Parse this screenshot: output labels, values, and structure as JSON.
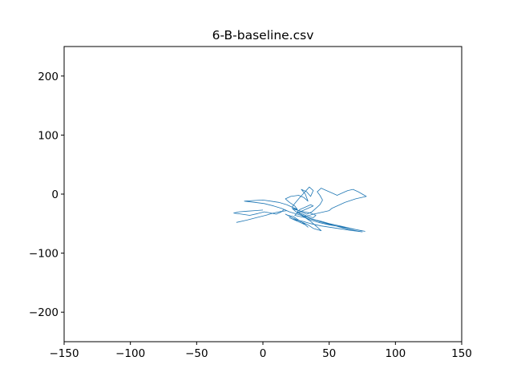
{
  "chart_data": {
    "type": "line",
    "title": "6-B-baseline.csv",
    "xlabel": "",
    "ylabel": "",
    "xlim": [
      -150,
      150
    ],
    "ylim": [
      -250,
      250
    ],
    "xticks": [
      -150,
      -100,
      -50,
      0,
      50,
      100,
      150
    ],
    "yticks": [
      -200,
      -100,
      0,
      100,
      200
    ],
    "xtick_labels": [
      "−150",
      "−100",
      "−50",
      "0",
      "50",
      "100",
      "150"
    ],
    "ytick_labels": [
      "−200",
      "−100",
      "0",
      "100",
      "200"
    ],
    "grid": false,
    "series": [
      {
        "color": "#1f77b4",
        "x": [
          -20,
          -12,
          -5,
          2,
          8,
          12,
          18,
          14,
          8,
          1,
          -6,
          -14,
          -8,
          0,
          6,
          12,
          18,
          22,
          26,
          24,
          20,
          17,
          21,
          27,
          31,
          34,
          32,
          29,
          33,
          36,
          38,
          35,
          31,
          27,
          24,
          22,
          25,
          29,
          33,
          37,
          40,
          43,
          45,
          43,
          41,
          44,
          48,
          52,
          56,
          60,
          64,
          68,
          72,
          75,
          78,
          70,
          62,
          56,
          52,
          50,
          46,
          42,
          38,
          35,
          31,
          34,
          37,
          40,
          44,
          50,
          58,
          66,
          74,
          77,
          70,
          60,
          50,
          42,
          36,
          32,
          28,
          24,
          26,
          30,
          34,
          38,
          36,
          32,
          28,
          26,
          30,
          34,
          38,
          40,
          36,
          31,
          27,
          24,
          22,
          25,
          30,
          36,
          45,
          55,
          65,
          75,
          68,
          56,
          44,
          36,
          30,
          25,
          22,
          20,
          24,
          28,
          32,
          34,
          31,
          27,
          23,
          19,
          17,
          22,
          28,
          34,
          38,
          41,
          44,
          40,
          36,
          32,
          29,
          26,
          23,
          20,
          18,
          16,
          14,
          10,
          6,
          1,
          -4,
          -10,
          -16,
          -22,
          -18,
          -12,
          -6,
          0
        ],
        "y": [
          -48,
          -44,
          -40,
          -36,
          -32,
          -30,
          -28,
          -24,
          -20,
          -16,
          -14,
          -12,
          -11,
          -10,
          -12,
          -14,
          -18,
          -22,
          -26,
          -20,
          -14,
          -8,
          -4,
          -2,
          -6,
          -12,
          0,
          8,
          4,
          -4,
          6,
          12,
          2,
          -8,
          -16,
          -22,
          -26,
          -30,
          -34,
          -30,
          -24,
          -18,
          -10,
          -2,
          4,
          10,
          6,
          2,
          -2,
          2,
          6,
          8,
          4,
          0,
          -4,
          -8,
          -14,
          -20,
          -24,
          -28,
          -30,
          -32,
          -34,
          -36,
          -38,
          -40,
          -42,
          -44,
          -46,
          -50,
          -54,
          -58,
          -62,
          -63,
          -60,
          -56,
          -52,
          -48,
          -44,
          -40,
          -38,
          -36,
          -32,
          -28,
          -24,
          -20,
          -18,
          -22,
          -26,
          -30,
          -34,
          -38,
          -40,
          -36,
          -32,
          -30,
          -28,
          -26,
          -24,
          -30,
          -36,
          -42,
          -48,
          -54,
          -60,
          -64,
          -62,
          -58,
          -54,
          -50,
          -46,
          -44,
          -42,
          -40,
          -44,
          -48,
          -52,
          -56,
          -50,
          -44,
          -38,
          -36,
          -34,
          -40,
          -46,
          -52,
          -58,
          -60,
          -62,
          -54,
          -46,
          -40,
          -36,
          -34,
          -32,
          -30,
          -28,
          -26,
          -30,
          -34,
          -32,
          -30,
          -33,
          -36,
          -34,
          -32,
          -30,
          -29,
          -28,
          -27
        ]
      }
    ]
  }
}
